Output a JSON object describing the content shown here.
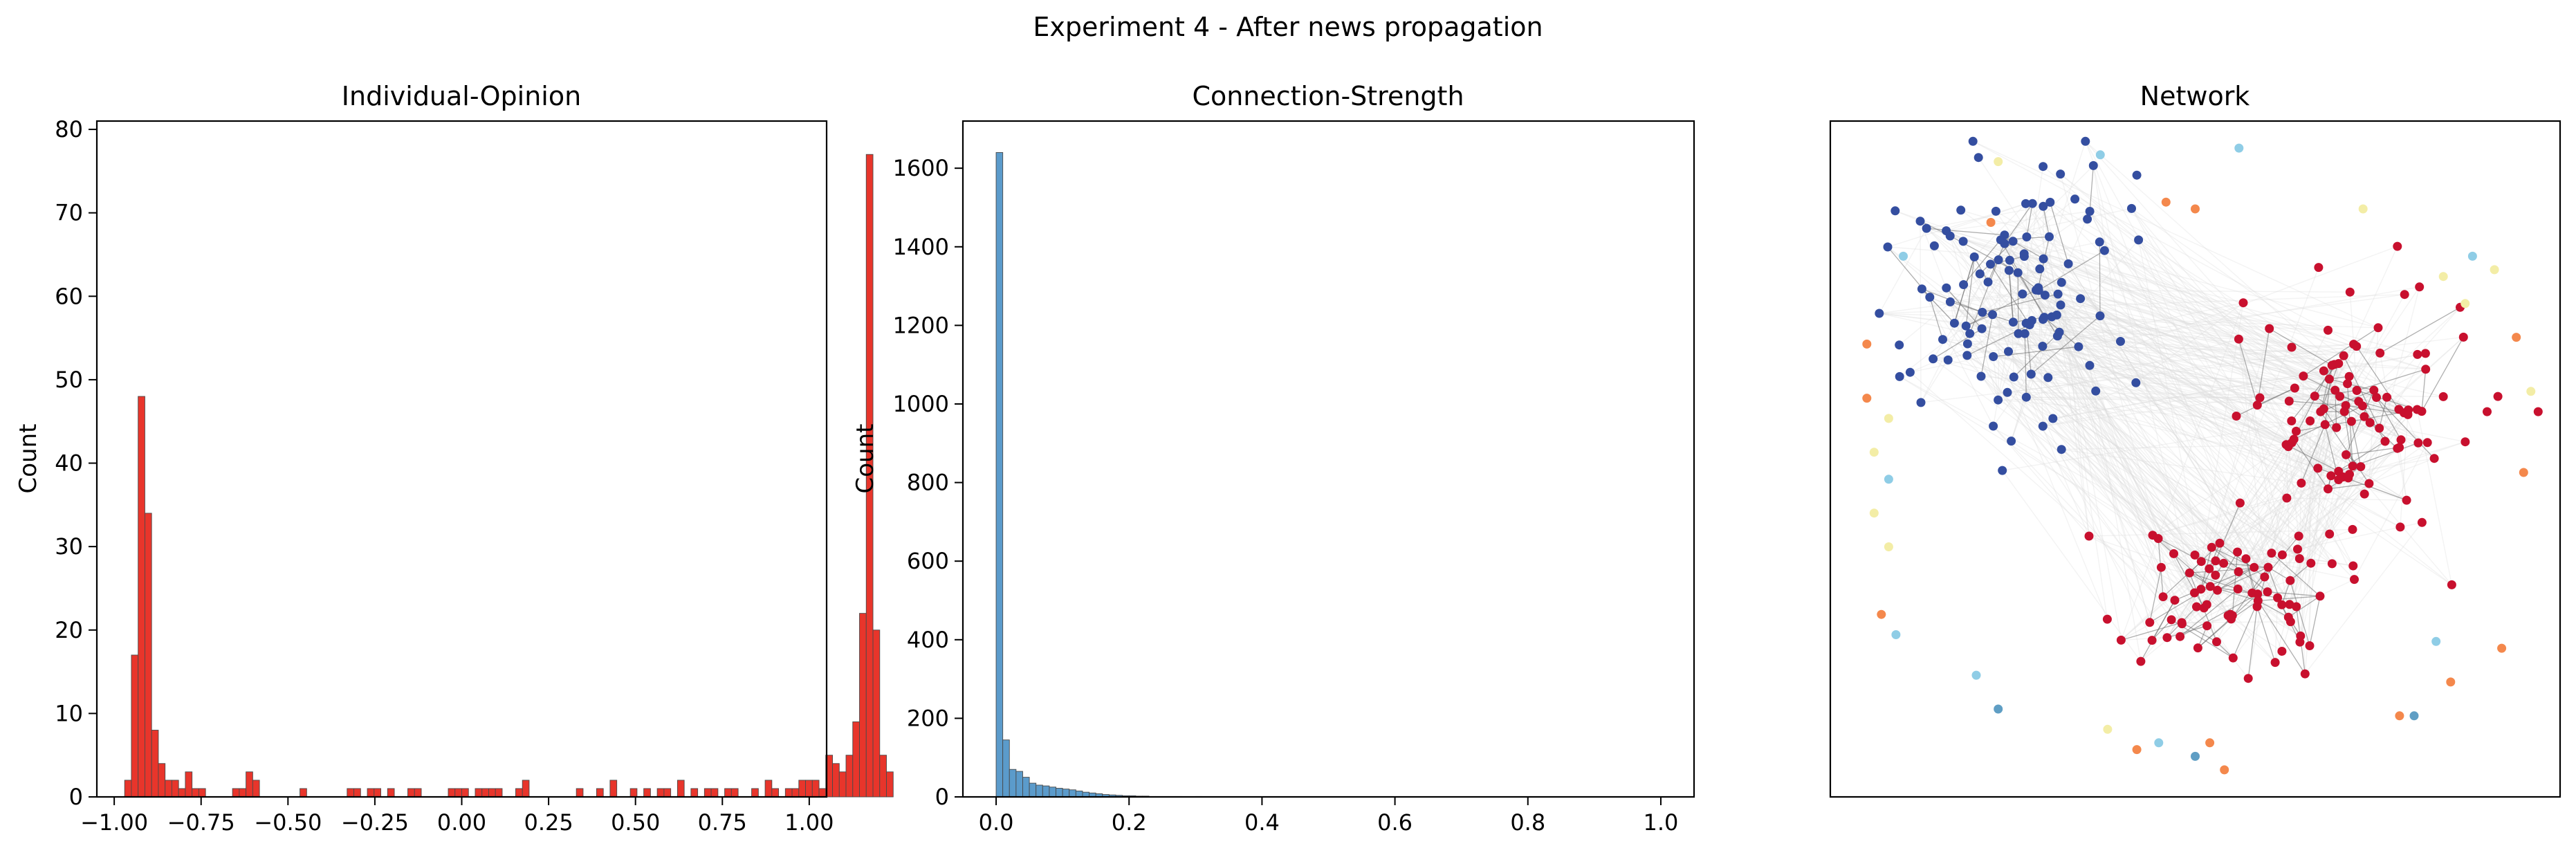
{
  "figure": {
    "suptitle": "Experiment 4 - After news propagation"
  },
  "chart_data": [
    {
      "type": "bar",
      "title": "Individual-Opinion",
      "xlabel": "",
      "ylabel": "Count",
      "bar_color": "#e8352b",
      "xlim": [
        -1.05,
        1.05
      ],
      "ylim": [
        0,
        81
      ],
      "xticks": [
        -1.0,
        -0.75,
        -0.5,
        -0.25,
        0.0,
        0.25,
        0.5,
        0.75,
        1.0
      ],
      "xtick_labels": [
        "−1.00",
        "−0.75",
        "−0.50",
        "−0.25",
        "0.00",
        "0.25",
        "0.50",
        "0.75",
        "1.00"
      ],
      "yticks": [
        0,
        10,
        20,
        30,
        40,
        50,
        60,
        70,
        80
      ],
      "ytick_labels": [
        "0",
        "10",
        "20",
        "30",
        "40",
        "50",
        "60",
        "70",
        "80"
      ],
      "bins": {
        "start": -0.97,
        "width": 0.0194,
        "counts": [
          2,
          17,
          48,
          34,
          8,
          4,
          2,
          2,
          1,
          3,
          1,
          1,
          0,
          0,
          0,
          0,
          1,
          1,
          3,
          2,
          0,
          0,
          0,
          0,
          0,
          0,
          1,
          0,
          0,
          0,
          0,
          0,
          0,
          1,
          1,
          0,
          1,
          1,
          0,
          1,
          0,
          0,
          1,
          1,
          0,
          0,
          0,
          0,
          1,
          1,
          1,
          0,
          1,
          1,
          1,
          1,
          0,
          0,
          1,
          2,
          0,
          0,
          0,
          0,
          0,
          0,
          0,
          1,
          0,
          0,
          1,
          0,
          2,
          0,
          0,
          1,
          0,
          1,
          0,
          1,
          1,
          0,
          2,
          0,
          1,
          0,
          1,
          1,
          0,
          1,
          1,
          0,
          0,
          1,
          0,
          2,
          1,
          0,
          1,
          1,
          2,
          2,
          2,
          1,
          5,
          4,
          3,
          5,
          9,
          22,
          77,
          20,
          5,
          3
        ]
      }
    },
    {
      "type": "bar",
      "title": "Connection-Strength",
      "xlabel": "",
      "ylabel": "Count",
      "bar_color": "#5b9bcb",
      "xlim": [
        -0.05,
        1.05
      ],
      "ylim": [
        0,
        1720
      ],
      "xticks": [
        0.0,
        0.2,
        0.4,
        0.6,
        0.8,
        1.0
      ],
      "xtick_labels": [
        "0.0",
        "0.2",
        "0.4",
        "0.6",
        "0.8",
        "1.0"
      ],
      "yticks": [
        0,
        200,
        400,
        600,
        800,
        1000,
        1200,
        1400,
        1600
      ],
      "ytick_labels": [
        "0",
        "200",
        "400",
        "600",
        "800",
        "1000",
        "1200",
        "1400",
        "1600"
      ],
      "bins": {
        "start": 0.0,
        "width": 0.01,
        "counts": [
          1640,
          145,
          70,
          65,
          50,
          35,
          30,
          28,
          25,
          22,
          20,
          18,
          15,
          12,
          10,
          8,
          6,
          5,
          4,
          3,
          3,
          2,
          2,
          1,
          1,
          1,
          1,
          1,
          0,
          0,
          1
        ]
      }
    },
    {
      "type": "scatter",
      "title": "Network",
      "xlabel": "",
      "ylabel": "",
      "axes": "off-ticks",
      "colors": {
        "blue": "#344ea0",
        "red": "#c8102e",
        "orange": "#f4884c",
        "light_blue": "#8fcde6",
        "pale_yellow": "#f3eda6",
        "steel": "#5f9ec4"
      }
    }
  ]
}
